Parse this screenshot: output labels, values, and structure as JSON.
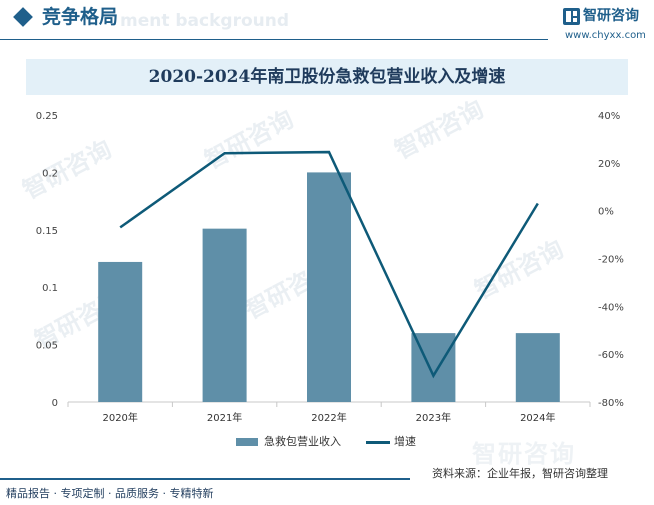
{
  "header": {
    "title": "竞争格局",
    "ghost_text": "ment background"
  },
  "brand": {
    "name": "智研咨询",
    "url": "www.chyxx.com",
    "watermark": "智研咨询"
  },
  "chart_data": {
    "type": "bar",
    "title": "2020-2024年南卫股份急救包营业收入及增速",
    "categories": [
      "2020年",
      "2021年",
      "2022年",
      "2023年",
      "2024年"
    ],
    "series": [
      {
        "name": "急救包营业收入",
        "kind": "bar",
        "axis": "left",
        "color": "#5f8fa8",
        "values": [
          0.122,
          0.151,
          0.2,
          0.06,
          0.06
        ]
      },
      {
        "name": "增速",
        "kind": "line",
        "axis": "right",
        "color": "#0e5a78",
        "values": [
          -7,
          24,
          24.5,
          -69,
          3
        ]
      }
    ],
    "y_left": {
      "ylim": [
        0,
        0.25
      ],
      "ticks": [
        "0",
        "0.05",
        "0.1",
        "0.15",
        "0.2",
        "0.25"
      ]
    },
    "y_right": {
      "ylim": [
        -80,
        40
      ],
      "ticks": [
        "-80%",
        "-60%",
        "-40%",
        "-20%",
        "0%",
        "20%",
        "40%"
      ]
    },
    "grid": false,
    "legend": "bottom"
  },
  "footer": {
    "left": "精品报告 · 专项定制 · 品质服务 · 专精特新",
    "source": "资料来源：企业年报，智研咨询整理"
  }
}
